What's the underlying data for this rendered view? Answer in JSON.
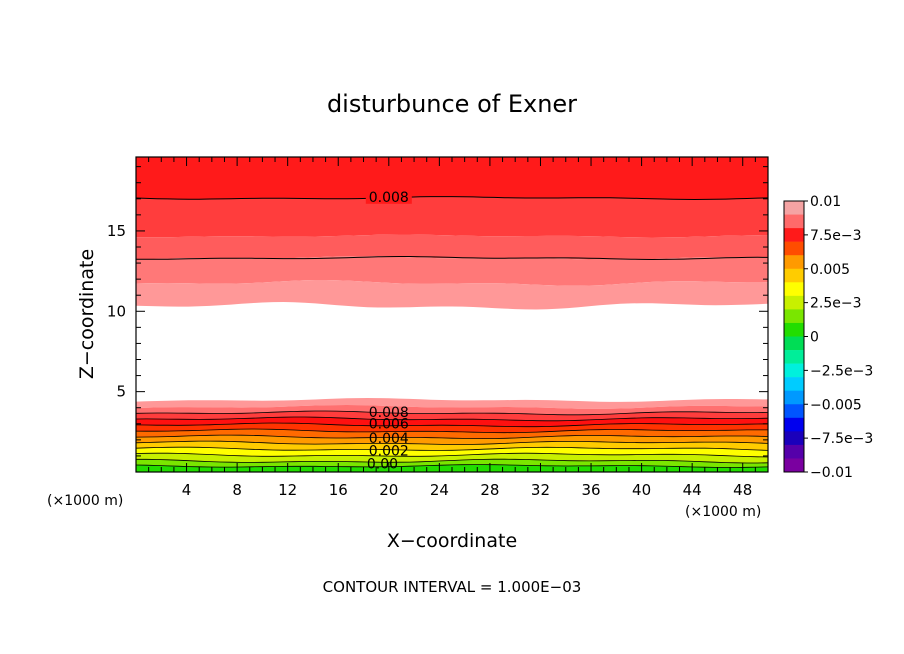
{
  "chart_data": {
    "type": "contour",
    "title": "disturbunce of Exner",
    "xlabel": "X−coordinate",
    "ylabel": "Z−coordinate",
    "x_unit": "(×1000 m)",
    "y_unit": "(×1000 m)",
    "xlim": [
      0,
      50
    ],
    "ylim": [
      0,
      19.6
    ],
    "x_ticks": [
      4,
      8,
      12,
      16,
      20,
      24,
      28,
      32,
      36,
      40,
      44,
      48
    ],
    "y_ticks": [
      5,
      10,
      15
    ],
    "footer": "CONTOUR INTERVAL = 1.000E−03",
    "colorbar": {
      "labels": [
        "0.01",
        "7.5e−3",
        "0.005",
        "2.5e−3",
        "0",
        "−2.5e−3",
        "−0.005",
        "−7.5e−3",
        "−0.01"
      ],
      "colors": [
        "#f5a3a3",
        "#ff6a6a",
        "#ff1a1a",
        "#ff4d00",
        "#ff9a00",
        "#ffcc00",
        "#ffff00",
        "#c8f000",
        "#7ae600",
        "#22dd00",
        "#00dd55",
        "#00ee99",
        "#00f0dd",
        "#00ccff",
        "#0099ff",
        "#0055ff",
        "#0000ee",
        "#1a00bb",
        "#5500aa",
        "#7a00a0"
      ]
    },
    "contour_labels": [
      {
        "text": "0.008",
        "x": 20,
        "z": 17
      },
      {
        "text": "0.008",
        "x": 20,
        "z": 3.6
      },
      {
        "text": "0.006",
        "x": 20,
        "z": 2.9
      },
      {
        "text": "0.004",
        "x": 20,
        "z": 2.0
      },
      {
        "text": "0.002",
        "x": 20,
        "z": 1.2
      },
      {
        "text": "0.00",
        "x": 19.5,
        "z": 0.4
      }
    ]
  }
}
